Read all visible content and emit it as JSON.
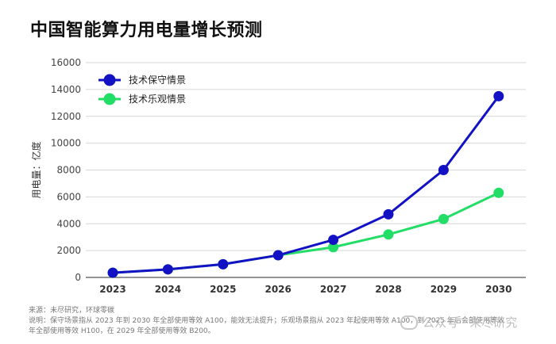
{
  "chart_data": {
    "type": "line",
    "title": "中国智能算力用电量增长预测",
    "ylabel": "用电量：亿度",
    "xlabel": "",
    "categories": [
      "2023",
      "2024",
      "2025",
      "2026",
      "2027",
      "2028",
      "2029",
      "2030"
    ],
    "ylim": [
      0,
      16000
    ],
    "yticks": [
      0,
      2000,
      4000,
      6000,
      8000,
      10000,
      12000,
      14000,
      16000
    ],
    "grid": true,
    "legend_position": "top-left",
    "series": [
      {
        "name": "技术保守情景",
        "color": "#1212c4",
        "values": [
          350,
          600,
          980,
          1650,
          2800,
          4700,
          8000,
          13500
        ]
      },
      {
        "name": "技术乐观情景",
        "color": "#22dd66",
        "values": [
          350,
          600,
          980,
          1650,
          2250,
          3200,
          4350,
          6300
        ]
      }
    ]
  },
  "footer": {
    "source": "来源：未尽研究，环球零碳",
    "note_line1": "说明：保守场景指从 2023 年到 2030 年全部使用等效 A100，能效无法提升；乐观场景指从 2023 年起使用等效 A100，到 2025 年后会部使用等效",
    "note_line2": "年全部使用等效 H100，在 2029 年全部使用等效 B200。"
  },
  "watermark": {
    "text": "公众号 · 未尽研究",
    "icon": "wechat-icon"
  }
}
